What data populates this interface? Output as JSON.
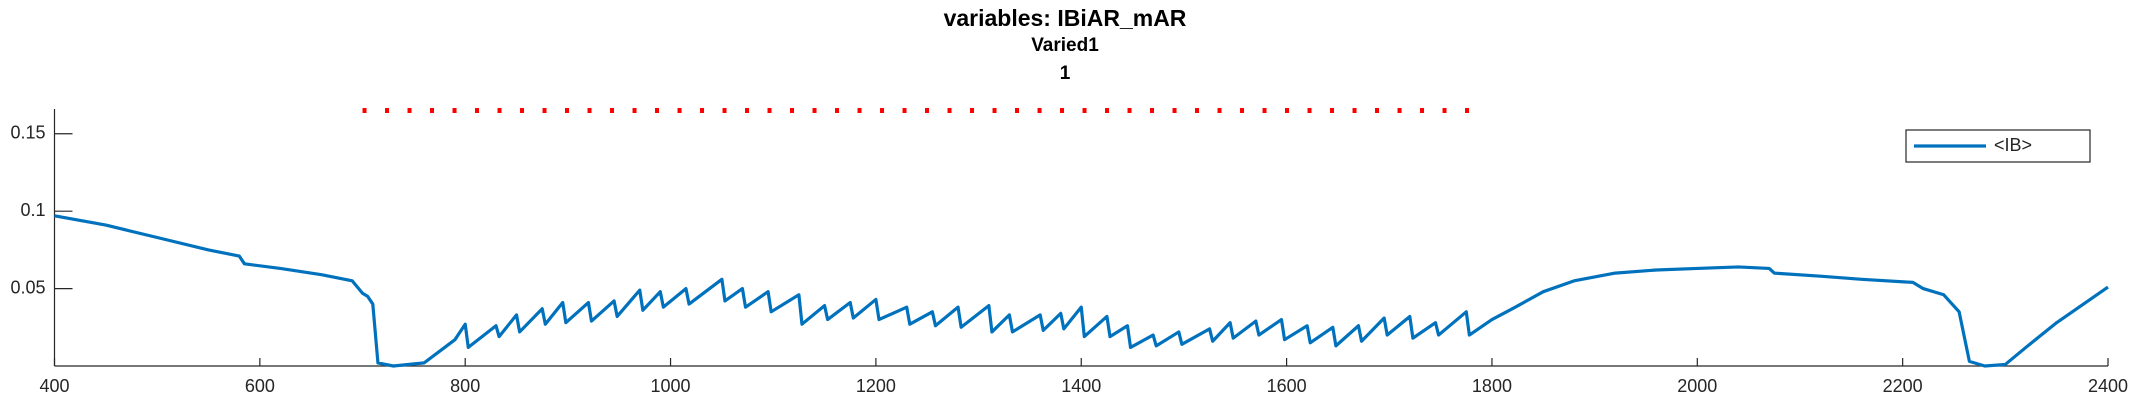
{
  "chart_data": {
    "type": "line",
    "title": "variables: IBiAR_mAR",
    "subtitle": [
      "Varied1",
      "1"
    ],
    "xlim": [
      400,
      2400
    ],
    "xticks": [
      400,
      600,
      800,
      1000,
      1200,
      1400,
      1600,
      1800,
      2000,
      2200,
      2400
    ],
    "ylim": [
      0,
      0.166
    ],
    "yticks": [
      0.05,
      0.1,
      0.15
    ],
    "grid": false,
    "legend": "northeast",
    "series": [
      {
        "name": "<IB>",
        "color": "#0072bd",
        "x": [
          400,
          450,
          500,
          550,
          580,
          585,
          620,
          660,
          690,
          700,
          705,
          710,
          715,
          730,
          760,
          780,
          790,
          800,
          803,
          830,
          833,
          850,
          853,
          875,
          878,
          895,
          898,
          920,
          923,
          945,
          948,
          970,
          973,
          990,
          993,
          1015,
          1018,
          1050,
          1053,
          1070,
          1073,
          1095,
          1098,
          1125,
          1128,
          1150,
          1153,
          1175,
          1178,
          1200,
          1203,
          1230,
          1233,
          1255,
          1258,
          1280,
          1283,
          1310,
          1313,
          1330,
          1333,
          1360,
          1363,
          1380,
          1383,
          1400,
          1403,
          1425,
          1428,
          1445,
          1448,
          1470,
          1473,
          1495,
          1498,
          1525,
          1528,
          1545,
          1548,
          1570,
          1573,
          1595,
          1598,
          1620,
          1623,
          1645,
          1648,
          1670,
          1673,
          1695,
          1698,
          1720,
          1723,
          1745,
          1748,
          1775,
          1778,
          1800,
          1820,
          1850,
          1880,
          1920,
          1960,
          2000,
          2040,
          2070,
          2075,
          2120,
          2160,
          2210,
          2220,
          2240,
          2255,
          2265,
          2280,
          2300,
          2320,
          2350,
          2400
        ],
        "values": [
          0.097,
          0.091,
          0.083,
          0.075,
          0.071,
          0.066,
          0.063,
          0.059,
          0.055,
          0.047,
          0.045,
          0.04,
          0.002,
          0,
          0.002,
          0.012,
          0.017,
          0.027,
          0.012,
          0.026,
          0.019,
          0.033,
          0.022,
          0.037,
          0.027,
          0.041,
          0.028,
          0.041,
          0.029,
          0.042,
          0.032,
          0.049,
          0.036,
          0.048,
          0.038,
          0.05,
          0.04,
          0.056,
          0.042,
          0.05,
          0.038,
          0.048,
          0.035,
          0.046,
          0.027,
          0.039,
          0.03,
          0.041,
          0.031,
          0.043,
          0.03,
          0.038,
          0.027,
          0.035,
          0.026,
          0.038,
          0.025,
          0.039,
          0.022,
          0.033,
          0.022,
          0.033,
          0.023,
          0.034,
          0.024,
          0.038,
          0.019,
          0.032,
          0.019,
          0.026,
          0.012,
          0.02,
          0.013,
          0.022,
          0.014,
          0.024,
          0.016,
          0.028,
          0.018,
          0.029,
          0.02,
          0.03,
          0.017,
          0.026,
          0.015,
          0.025,
          0.013,
          0.026,
          0.016,
          0.031,
          0.02,
          0.032,
          0.018,
          0.028,
          0.02,
          0.035,
          0.02,
          0.03,
          0.037,
          0.048,
          0.055,
          0.06,
          0.062,
          0.063,
          0.064,
          0.063,
          0.06,
          0.058,
          0.056,
          0.054,
          0.05,
          0.046,
          0.035,
          0.003,
          0,
          0.001,
          0.012,
          0.028,
          0.051
        ]
      }
    ],
    "reference": {
      "x": [
        700,
        1780
      ],
      "values": [
        0.165,
        0.165
      ],
      "color": "#ff0000",
      "style": "dotted"
    }
  }
}
